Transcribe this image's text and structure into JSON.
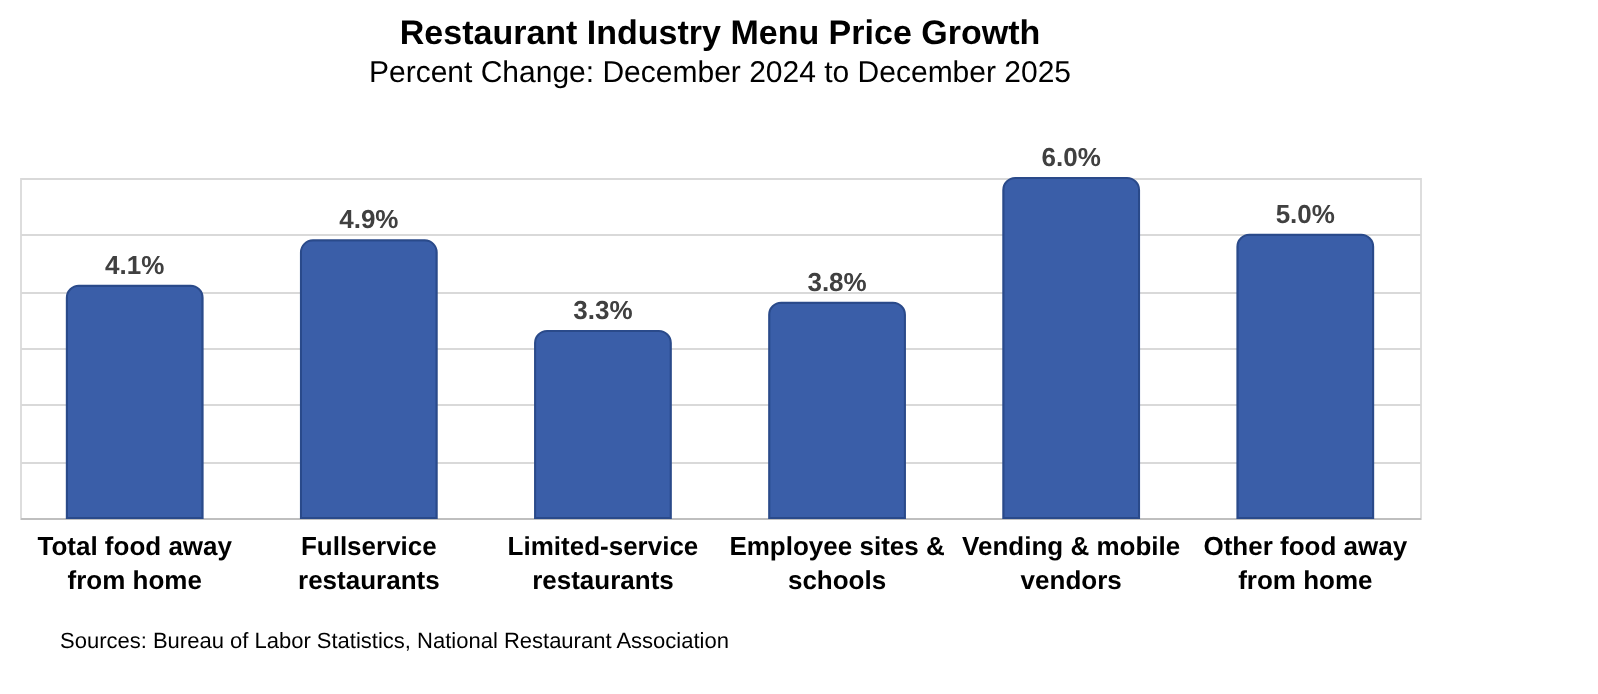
{
  "chart_data": {
    "type": "bar",
    "title": "Restaurant Industry Menu Price Growth",
    "subtitle": "Percent Change: December 2024 to December 2025",
    "categories": [
      "Total food away from home",
      "Fullservice restaurants",
      "Limited-service restaurants",
      "Employee sites & schools",
      "Vending & mobile vendors",
      "Other food away from home"
    ],
    "values": [
      4.1,
      4.9,
      3.3,
      3.8,
      6.0,
      5.0
    ],
    "value_labels": [
      "4.1%",
      "4.9%",
      "3.3%",
      "3.8%",
      "6.0%",
      "5.0%"
    ],
    "color": "#3a5ea8",
    "ylim": [
      0,
      6
    ],
    "yticks": [
      {
        "value": 0,
        "label": null
      },
      {
        "value": 1,
        "label": null
      },
      {
        "value": 2,
        "label": null
      },
      {
        "value": 3,
        "label": null
      },
      {
        "value": 4,
        "label": null
      },
      {
        "value": 5,
        "label": null
      },
      {
        "value": 6,
        "label": null
      }
    ],
    "tick_labels": "x",
    "grid": "y",
    "annotations": [
      "Sources: Bureau of Labor Statistics, National Restaurant Association"
    ]
  }
}
